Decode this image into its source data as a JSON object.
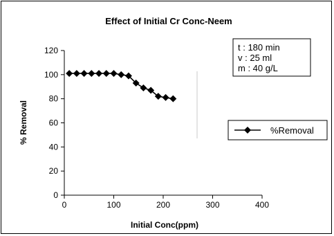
{
  "chart_data": {
    "type": "line",
    "title": "Effect of Initial Cr Conc-Neem",
    "xlabel": "Initial Conc(ppm)",
    "ylabel": "% Removal",
    "xlim": [
      0,
      400
    ],
    "ylim": [
      0,
      120
    ],
    "xticks": [
      0,
      100,
      200,
      300,
      400
    ],
    "yticks": [
      0,
      20,
      40,
      60,
      80,
      100,
      120
    ],
    "grid": false,
    "legend_position": "right",
    "series": [
      {
        "name": "%Removal",
        "color": "#000000",
        "marker": "diamond",
        "x": [
          10,
          25,
          40,
          55,
          70,
          85,
          100,
          115,
          130,
          145,
          160,
          175,
          190,
          205,
          220
        ],
        "y": [
          101,
          101,
          101,
          101,
          101,
          101,
          101,
          100,
          99,
          93,
          89,
          87,
          82,
          81,
          80
        ]
      }
    ],
    "annotation": {
      "lines": [
        "t : 180 min",
        "v : 25 ml",
        "m : 40 g/L"
      ]
    }
  }
}
